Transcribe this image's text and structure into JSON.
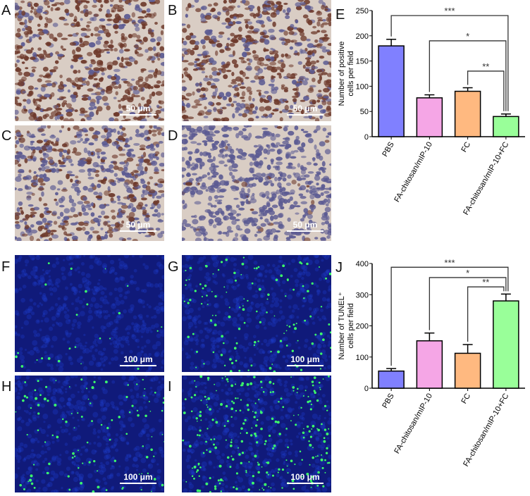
{
  "panels": {
    "A": "A",
    "B": "B",
    "C": "C",
    "D": "D",
    "F": "F",
    "G": "G",
    "H": "H",
    "I": "I"
  },
  "scale_bars": {
    "ihc": "50 μm",
    "tunel": "100 μm"
  },
  "micro_colors": {
    "ihc_bg": "#d9cdc4",
    "ihc_brown": "#6e3a2c",
    "ihc_blue": "#5b5a92",
    "tunel_bg": "#101a7a",
    "tunel_green": "#3dff6a"
  },
  "chart_data": [
    {
      "type": "bar",
      "panel": "E",
      "ylabel": "Number of positive cells per field",
      "ylim": [
        0,
        250
      ],
      "yticks": [
        0,
        50,
        100,
        150,
        200,
        250
      ],
      "categories": [
        "PBS",
        "FA-chitosan/mIP-10",
        "FC",
        "FA-chitosan/mIP-10+FC"
      ],
      "values": [
        180,
        77,
        90,
        40
      ],
      "errors": [
        13,
        6,
        7,
        5
      ],
      "colors": [
        "#8080ff",
        "#f5a6e6",
        "#ffb980",
        "#99ff99"
      ],
      "significance": [
        {
          "from": 0,
          "to": 3,
          "label": "***"
        },
        {
          "from": 1,
          "to": 3,
          "label": "*"
        },
        {
          "from": 2,
          "to": 3,
          "label": "**"
        }
      ]
    },
    {
      "type": "bar",
      "panel": "J",
      "ylabel": "Number of TUNEL⁺ cells per field",
      "ylim": [
        0,
        400
      ],
      "yticks": [
        0,
        100,
        200,
        300,
        400
      ],
      "categories": [
        "PBS",
        "FA-chitosan/mIP-10",
        "FC",
        "FA-chitosan/mIP-10+FC"
      ],
      "values": [
        55,
        152,
        112,
        280
      ],
      "errors": [
        8,
        25,
        28,
        22
      ],
      "colors": [
        "#8080ff",
        "#f5a6e6",
        "#ffb980",
        "#99ff99"
      ],
      "significance": [
        {
          "from": 0,
          "to": 3,
          "label": "***"
        },
        {
          "from": 1,
          "to": 3,
          "label": "*"
        },
        {
          "from": 2,
          "to": 3,
          "label": "**"
        }
      ]
    }
  ]
}
